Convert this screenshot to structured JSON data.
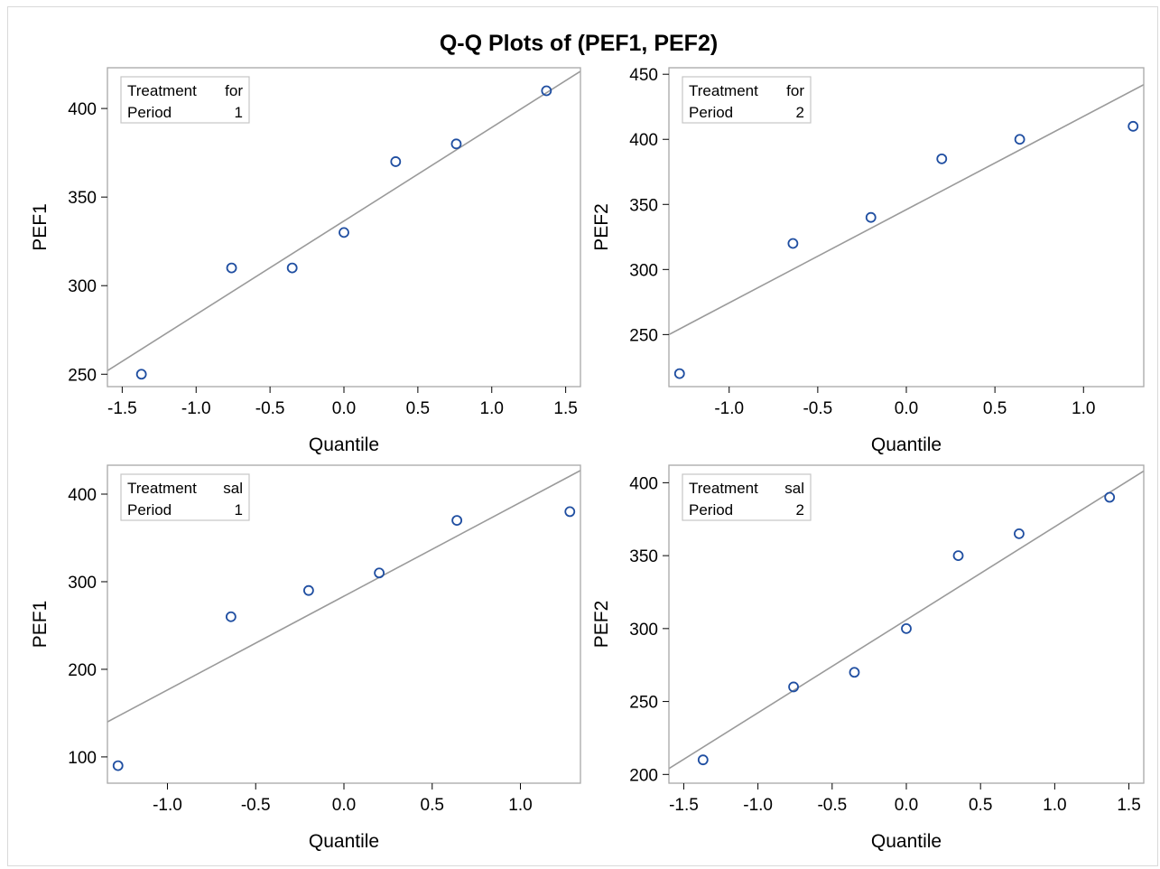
{
  "title": "Q-Q Plots of (PEF1, PEF2)",
  "colors": {
    "marker": "#1f4ea1",
    "refline": "#9a9a9a",
    "frame": "#a8a8a8"
  },
  "chart_data": [
    {
      "type": "scatter",
      "xlabel": "Quantile",
      "ylabel": "PEF1",
      "inset": {
        "row1_label": "Treatment",
        "row1_value": "for",
        "row2_label": "Period",
        "row2_value": "1"
      },
      "xlim": [
        -1.6,
        1.6
      ],
      "ylim": [
        243,
        423
      ],
      "xticks": [
        -1.5,
        -1.0,
        -0.5,
        0.0,
        0.5,
        1.0,
        1.5
      ],
      "xtick_labels": [
        "-1.5",
        "-1.0",
        "-0.5",
        "0.0",
        "0.5",
        "1.0",
        "1.5"
      ],
      "yticks": [
        250,
        300,
        350,
        400
      ],
      "ytick_labels": [
        "250",
        "300",
        "350",
        "400"
      ],
      "points": {
        "x": [
          -1.37,
          -0.76,
          -0.35,
          0.0,
          0.35,
          0.76,
          1.37
        ],
        "y": [
          250,
          310,
          310,
          330,
          370,
          380,
          410
        ]
      },
      "refline": {
        "x": [
          -1.6,
          1.6
        ],
        "y": [
          252,
          421
        ]
      }
    },
    {
      "type": "scatter",
      "xlabel": "Quantile",
      "ylabel": "PEF2",
      "inset": {
        "row1_label": "Treatment",
        "row1_value": "for",
        "row2_label": "Period",
        "row2_value": "2"
      },
      "xlim": [
        -1.34,
        1.34
      ],
      "ylim": [
        210,
        455
      ],
      "xticks": [
        -1.0,
        -0.5,
        0.0,
        0.5,
        1.0
      ],
      "xtick_labels": [
        "-1.0",
        "-0.5",
        "0.0",
        "0.5",
        "1.0"
      ],
      "yticks": [
        250,
        300,
        350,
        400,
        450
      ],
      "ytick_labels": [
        "250",
        "300",
        "350",
        "400",
        "450"
      ],
      "points": {
        "x": [
          -1.28,
          -0.64,
          -0.2,
          0.2,
          0.64,
          1.28
        ],
        "y": [
          220,
          320,
          340,
          385,
          400,
          410
        ]
      },
      "refline": {
        "x": [
          -1.34,
          1.34
        ],
        "y": [
          250,
          442
        ]
      }
    },
    {
      "type": "scatter",
      "xlabel": "Quantile",
      "ylabel": "PEF1",
      "inset": {
        "row1_label": "Treatment",
        "row1_value": "sal",
        "row2_label": "Period",
        "row2_value": "1"
      },
      "xlim": [
        -1.34,
        1.34
      ],
      "ylim": [
        70,
        433
      ],
      "xticks": [
        -1.0,
        -0.5,
        0.0,
        0.5,
        1.0
      ],
      "xtick_labels": [
        "-1.0",
        "-0.5",
        "0.0",
        "0.5",
        "1.0"
      ],
      "yticks": [
        100,
        200,
        300,
        400
      ],
      "ytick_labels": [
        "100",
        "200",
        "300",
        "400"
      ],
      "points": {
        "x": [
          -1.28,
          -0.64,
          -0.2,
          0.2,
          0.64,
          1.28
        ],
        "y": [
          90,
          260,
          290,
          310,
          370,
          380
        ]
      },
      "refline": {
        "x": [
          -1.34,
          1.34
        ],
        "y": [
          140,
          427
        ]
      }
    },
    {
      "type": "scatter",
      "xlabel": "Quantile",
      "ylabel": "PEF2",
      "inset": {
        "row1_label": "Treatment",
        "row1_value": "sal",
        "row2_label": "Period",
        "row2_value": "2"
      },
      "xlim": [
        -1.6,
        1.6
      ],
      "ylim": [
        194,
        412
      ],
      "xticks": [
        -1.5,
        -1.0,
        -0.5,
        0.0,
        0.5,
        1.0,
        1.5
      ],
      "xtick_labels": [
        "-1.5",
        "-1.0",
        "-0.5",
        "0.0",
        "0.5",
        "1.0",
        "1.5"
      ],
      "yticks": [
        200,
        250,
        300,
        350,
        400
      ],
      "ytick_labels": [
        "200",
        "250",
        "300",
        "350",
        "400"
      ],
      "points": {
        "x": [
          -1.37,
          -0.76,
          -0.35,
          0.0,
          0.35,
          0.76,
          1.37
        ],
        "y": [
          210,
          260,
          270,
          300,
          350,
          365,
          390
        ]
      },
      "refline": {
        "x": [
          -1.6,
          1.6
        ],
        "y": [
          204,
          408
        ]
      }
    }
  ]
}
